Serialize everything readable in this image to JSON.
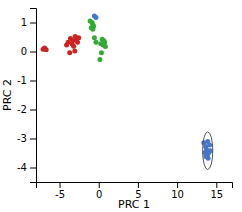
{
  "chart_data": {
    "type": "scatter",
    "xlabel": "PRC 1",
    "ylabel": "PRC 2",
    "xlim": [
      -8,
      17
    ],
    "ylim": [
      -4.5,
      1.5
    ],
    "xticks": [
      -5,
      0,
      5,
      10,
      15
    ],
    "yticks": [
      1,
      0,
      -1,
      -2,
      -3,
      -4
    ],
    "series": [
      {
        "color": "#cc2222",
        "x": [
          -7.1,
          -6.9,
          -6.7,
          -3.6,
          -3.3,
          -3.0,
          -2.8,
          -3.9,
          -3.4,
          -3.2,
          -3.05,
          -2.7,
          -2.55,
          -3.7,
          -4.1
        ],
        "values": [
          0.08,
          0.12,
          0.06,
          0.45,
          0.38,
          0.52,
          0.42,
          0.32,
          0.27,
          0.18,
          0.02,
          0.32,
          0.47,
          -0.04,
          0.22
        ]
      },
      {
        "color": "#33aa33",
        "x": [
          -1.1,
          -0.85,
          -0.75,
          -0.65,
          -0.95,
          -0.75,
          0.45,
          0.65,
          0.75,
          0.25,
          0.55,
          0.85,
          0.35,
          0.15,
          -0.55,
          -0.35
        ],
        "values": [
          1.05,
          1.0,
          0.92,
          0.87,
          0.82,
          0.77,
          0.42,
          0.37,
          0.32,
          0.27,
          0.22,
          0.17,
          -0.04,
          -0.28,
          0.47,
          0.32
        ]
      },
      {
        "color": "#4477cc",
        "x": [
          -0.55,
          -0.35
        ],
        "values": [
          1.22,
          1.17
        ]
      },
      {
        "color": "#4477cc",
        "x": [
          13.4,
          13.65,
          13.9,
          14.15,
          13.75,
          14.05,
          13.55,
          13.85,
          14.25,
          13.95,
          13.65
        ],
        "values": [
          -3.15,
          -3.28,
          -3.1,
          -3.22,
          -3.38,
          -3.48,
          -3.48,
          -3.58,
          -3.42,
          -3.68,
          -3.62
        ],
        "circle_center": [
          13.9,
          -3.42
        ],
        "circle_radius": 0.65
      }
    ]
  }
}
